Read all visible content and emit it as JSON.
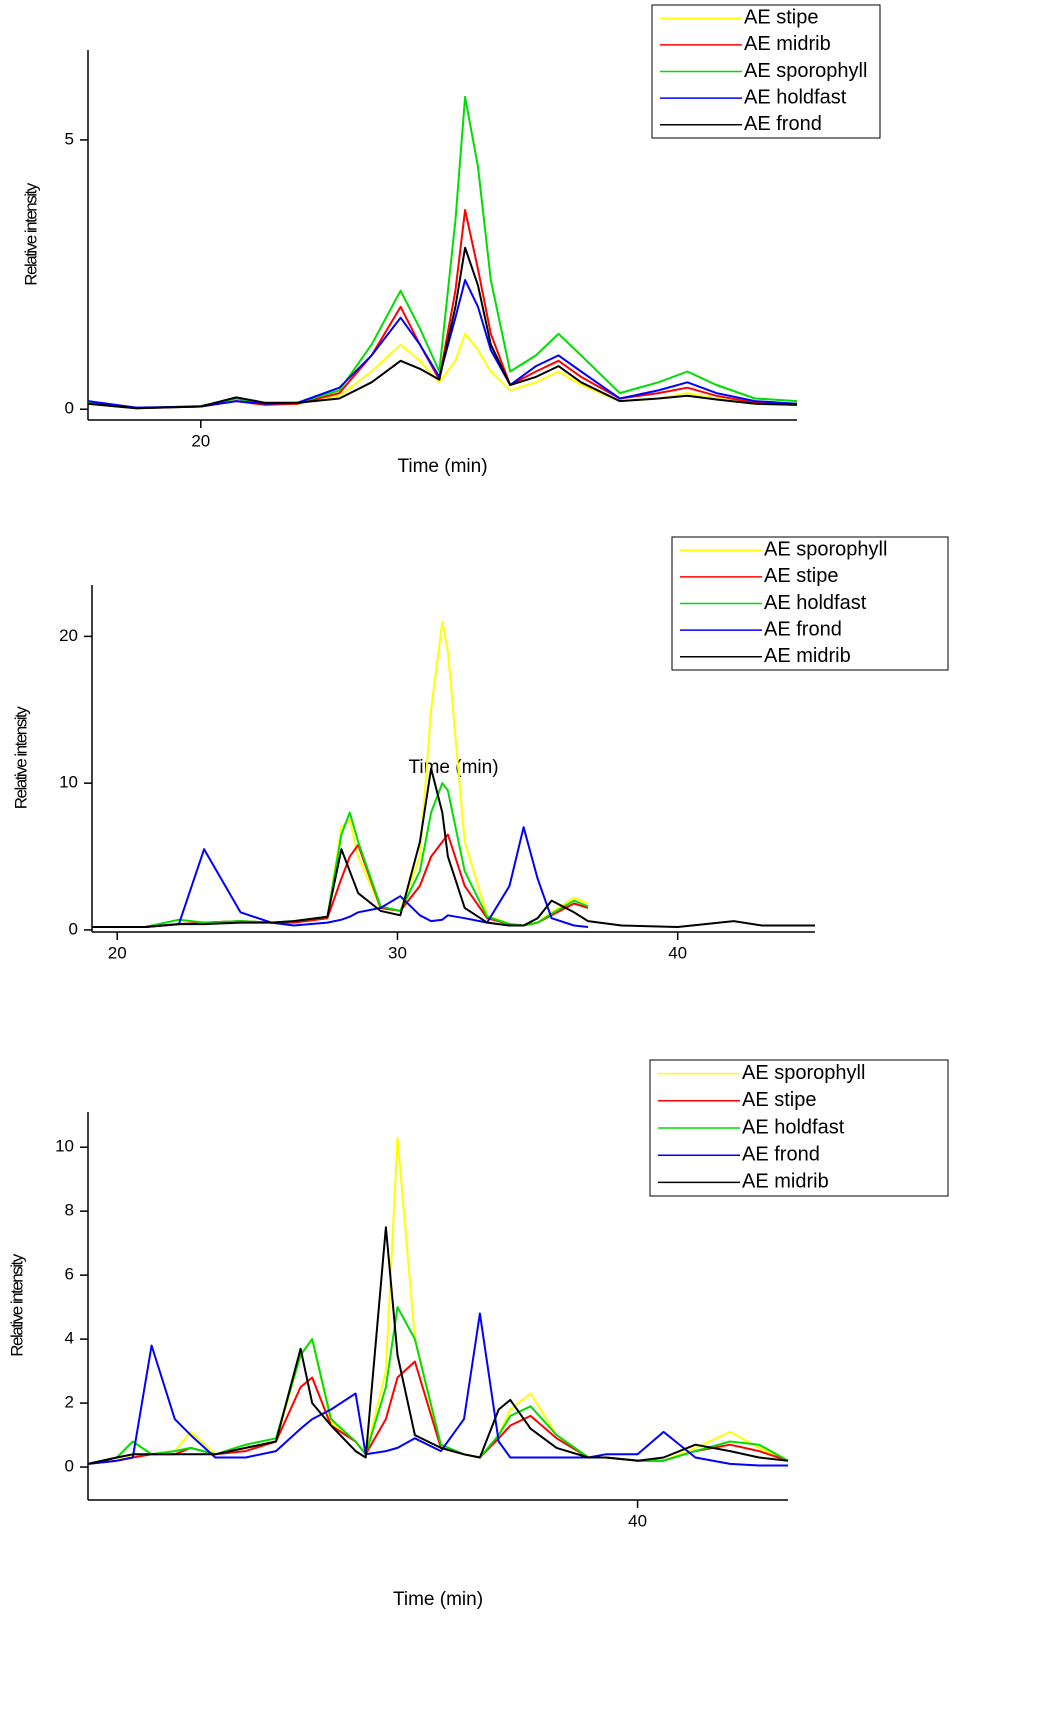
{
  "chart_data": [
    {
      "type": "line",
      "x_label": "Time (min)",
      "y_label": "Relative intensity",
      "legend": "upper right",
      "x": [
        16.5,
        18,
        20,
        21.1,
        22,
        23,
        24.3,
        25.3,
        26.2,
        26.8,
        27.4,
        27.9,
        28.2,
        28.6,
        29.0,
        29.6,
        30.4,
        31.1,
        31.8,
        33.0,
        34.2,
        35.1,
        36.0,
        37.2,
        38.5
      ],
      "xlim": [
        16.5,
        38.5
      ],
      "xticks": [
        20
      ],
      "ylim": [
        -0.2,
        6.67
      ],
      "yticks": [
        0,
        5
      ],
      "series": [
        {
          "name": "AE stipe",
          "color": "#ffff00",
          "values": [
            0.1,
            0.02,
            0.05,
            0.15,
            0.08,
            0.1,
            0.25,
            0.7,
            1.2,
            0.9,
            0.5,
            0.9,
            1.4,
            1.1,
            0.7,
            0.35,
            0.5,
            0.7,
            0.45,
            0.15,
            0.2,
            0.3,
            0.2,
            0.1,
            0.1
          ]
        },
        {
          "name": "AE midrib",
          "color": "#ff0000",
          "values": [
            0.1,
            0.02,
            0.05,
            0.15,
            0.08,
            0.1,
            0.3,
            1.0,
            1.9,
            1.2,
            0.55,
            2.2,
            3.7,
            2.6,
            1.4,
            0.45,
            0.7,
            0.9,
            0.6,
            0.2,
            0.3,
            0.4,
            0.25,
            0.12,
            0.1
          ]
        },
        {
          "name": "AE sporophyll",
          "color": "#00dd00",
          "values": [
            0.12,
            0.02,
            0.06,
            0.2,
            0.1,
            0.12,
            0.35,
            1.2,
            2.2,
            1.5,
            0.7,
            3.5,
            5.8,
            4.5,
            2.4,
            0.7,
            1.0,
            1.4,
            1.0,
            0.3,
            0.5,
            0.7,
            0.45,
            0.2,
            0.15
          ]
        },
        {
          "name": "AE holdfast",
          "color": "#0000ff",
          "values": [
            0.15,
            0.03,
            0.05,
            0.15,
            0.1,
            0.12,
            0.4,
            1.0,
            1.7,
            1.2,
            0.6,
            1.7,
            2.4,
            1.9,
            1.1,
            0.45,
            0.8,
            1.0,
            0.7,
            0.2,
            0.35,
            0.5,
            0.3,
            0.15,
            0.1
          ]
        },
        {
          "name": "AE frond",
          "color": "#000000",
          "values": [
            0.1,
            0.02,
            0.05,
            0.22,
            0.12,
            0.12,
            0.2,
            0.5,
            0.9,
            0.75,
            0.55,
            1.9,
            3.0,
            2.3,
            1.2,
            0.45,
            0.6,
            0.8,
            0.5,
            0.15,
            0.2,
            0.25,
            0.18,
            0.1,
            0.08
          ]
        }
      ]
    },
    {
      "type": "line",
      "x_label": "Time (min)",
      "y_label": "Relative intensity",
      "legend": "upper right",
      "x": [
        19.1,
        21,
        22.2,
        23.1,
        24.4,
        25.5,
        26.3,
        27.5,
        28.0,
        28.3,
        28.6,
        29.4,
        30.1,
        30.8,
        31.2,
        31.6,
        31.8,
        32.4,
        33.2,
        34.0,
        34.5,
        35.0,
        35.5,
        36.3,
        36.8,
        38,
        40,
        42.0,
        43,
        44.9
      ],
      "xlim": [
        19.1,
        44.9
      ],
      "xticks": [
        20,
        30,
        40
      ],
      "ylim": [
        -0.14,
        23.5
      ],
      "yticks": [
        0,
        10,
        20
      ],
      "series": [
        {
          "name": "AE sporophyll",
          "color": "#ffff00",
          "values": [
            0.2,
            0.2,
            0.4,
            0.5,
            0.6,
            0.5,
            0.5,
            0.8,
            7.0,
            7.5,
            5.0,
            1.5,
            1.3,
            5,
            15,
            21,
            19,
            6,
            1,
            0.4,
            0.3,
            0.5,
            1.2,
            2.2,
            1.8,
            null,
            null,
            null,
            null,
            null
          ]
        },
        {
          "name": "AE stipe",
          "color": "#ff0000",
          "values": [
            0.2,
            0.2,
            0.4,
            0.5,
            0.6,
            0.5,
            0.5,
            0.8,
            3.5,
            5.0,
            5.8,
            1.5,
            1.3,
            3,
            5,
            6,
            6.5,
            3,
            0.8,
            0.4,
            0.3,
            0.5,
            1.0,
            1.8,
            1.5,
            null,
            null,
            null,
            null,
            null
          ]
        },
        {
          "name": "AE holdfast",
          "color": "#00dd00",
          "values": [
            0.2,
            0.2,
            0.7,
            0.5,
            0.6,
            0.5,
            0.6,
            0.9,
            6.5,
            8.0,
            6.0,
            1.6,
            1.3,
            4,
            8,
            10,
            9.5,
            4,
            0.9,
            0.4,
            0.3,
            0.5,
            1.1,
            2.0,
            1.6,
            null,
            null,
            null,
            null,
            null
          ]
        },
        {
          "name": "AE frond",
          "color": "#0000ff",
          "values": [
            0.2,
            0.2,
            0.4,
            5.5,
            1.2,
            0.5,
            0.3,
            0.5,
            0.7,
            0.9,
            1.2,
            1.5,
            2.3,
            1.0,
            0.6,
            0.7,
            1.0,
            0.8,
            0.5,
            3,
            7.0,
            3.5,
            0.8,
            0.3,
            0.2,
            null,
            null,
            null,
            null,
            null
          ]
        },
        {
          "name": "AE midrib",
          "color": "#000000",
          "values": [
            0.2,
            0.2,
            0.4,
            0.4,
            0.5,
            0.5,
            0.6,
            0.9,
            5.5,
            4,
            2.5,
            1.3,
            1.0,
            6,
            11,
            8,
            5,
            1.5,
            0.5,
            0.3,
            0.3,
            0.8,
            2.0,
            1.2,
            0.6,
            0.3,
            0.2,
            0.6,
            0.3,
            0.3
          ]
        }
      ]
    },
    {
      "type": "line",
      "x_label": "Time (min)",
      "y_label": "Relative intensity",
      "legend": "upper right",
      "x": [
        21.0,
        22.0,
        22.55,
        23.2,
        24.0,
        24.55,
        25.4,
        26.45,
        27.5,
        28.35,
        28.75,
        29.4,
        30.25,
        30.6,
        31.3,
        31.7,
        32.3,
        33.2,
        34.0,
        34.55,
        35.2,
        35.6,
        36.3,
        37.2,
        38.3,
        38.9,
        40.0,
        40.9,
        42.0,
        43.2,
        44.2,
        45.2
      ],
      "xlim": [
        21.0,
        45.2
      ],
      "xticks": [
        40
      ],
      "ylim": [
        -1.03,
        11.1
      ],
      "yticks": [
        0,
        2,
        4,
        6,
        8,
        10
      ],
      "series": [
        {
          "name": "AE sporophyll",
          "color": "#ffff00",
          "values": [
            0.1,
            0.2,
            0.4,
            0.4,
            0.5,
            1.1,
            0.4,
            0.6,
            0.8,
            3.5,
            4.0,
            1.4,
            0.8,
            0.4,
            3,
            10.3,
            4,
            0.6,
            0.4,
            0.3,
            1.0,
            1.8,
            2.3,
            1.0,
            0.3,
            0.3,
            0.2,
            0.2,
            0.6,
            1.1,
            0.6,
            0.2
          ]
        },
        {
          "name": "AE stipe",
          "color": "#ff0000",
          "values": [
            0.1,
            0.2,
            0.3,
            0.4,
            0.4,
            0.6,
            0.4,
            0.5,
            0.8,
            2.5,
            2.8,
            1.3,
            0.8,
            0.4,
            1.5,
            2.8,
            3.3,
            0.6,
            0.4,
            0.3,
            0.9,
            1.3,
            1.6,
            0.9,
            0.3,
            0.3,
            0.2,
            0.2,
            0.5,
            0.7,
            0.5,
            0.2
          ]
        },
        {
          "name": "AE holdfast",
          "color": "#00dd00",
          "values": [
            0.1,
            0.3,
            0.8,
            0.4,
            0.5,
            0.6,
            0.4,
            0.7,
            0.9,
            3.5,
            4.0,
            1.5,
            0.8,
            0.4,
            2.5,
            5.0,
            4.0,
            0.7,
            0.4,
            0.3,
            1.0,
            1.6,
            1.9,
            1.0,
            0.3,
            0.3,
            0.2,
            0.2,
            0.5,
            0.8,
            0.7,
            0.2
          ]
        },
        {
          "name": "AE frond",
          "color": "#0000ff",
          "values": [
            0.1,
            0.2,
            0.3,
            3.8,
            1.5,
            1.0,
            0.3,
            0.3,
            0.5,
            1.2,
            1.5,
            1.8,
            2.3,
            0.4,
            0.5,
            0.6,
            0.9,
            0.5,
            1.5,
            4.8,
            0.8,
            0.3,
            0.3,
            0.3,
            0.3,
            0.4,
            0.4,
            1.1,
            0.3,
            0.1,
            0.05,
            0.05
          ]
        },
        {
          "name": "AE midrib",
          "color": "#000000",
          "values": [
            0.1,
            0.3,
            0.4,
            0.4,
            0.4,
            0.4,
            0.4,
            0.6,
            0.8,
            3.7,
            2.0,
            1.3,
            0.5,
            0.3,
            7.5,
            3.5,
            1.0,
            0.6,
            0.4,
            0.3,
            1.8,
            2.1,
            1.2,
            0.6,
            0.3,
            0.3,
            0.2,
            0.3,
            0.7,
            0.5,
            0.3,
            0.2
          ]
        }
      ]
    }
  ]
}
